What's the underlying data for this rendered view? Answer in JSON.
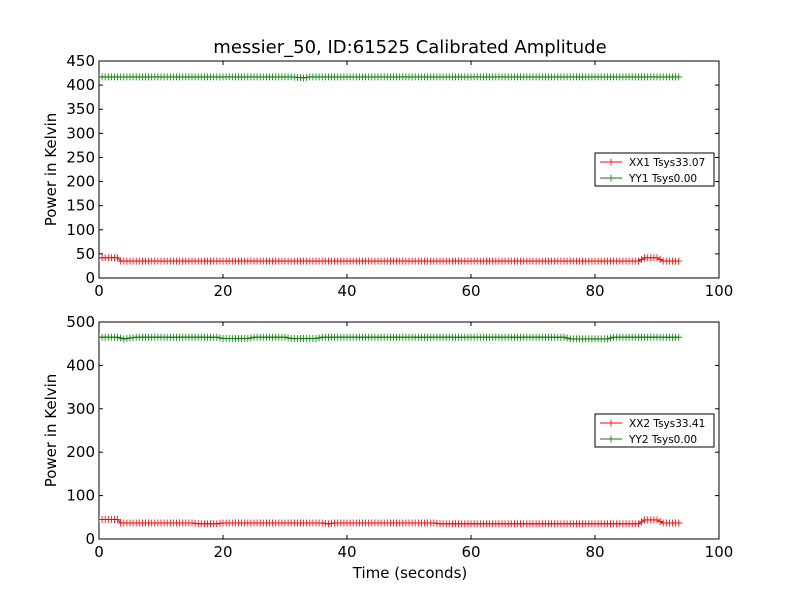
{
  "title": "messier_50, ID:61525 Calibrated Amplitude",
  "colors": {
    "xx": "#ff0000",
    "yy": "#008000",
    "axes": "#000000"
  },
  "xlabel": "Time (seconds)",
  "chart_data": [
    {
      "type": "line",
      "title": "messier_50, ID:61525 Calibrated Amplitude",
      "xlabel": "",
      "ylabel": "Power in Kelvin",
      "xlim": [
        0,
        100
      ],
      "ylim": [
        0,
        450
      ],
      "xticks": [
        "0",
        "20",
        "40",
        "60",
        "80",
        "100"
      ],
      "yticks": [
        "0",
        "50",
        "100",
        "150",
        "200",
        "250",
        "300",
        "350",
        "400",
        "450"
      ],
      "legend_position": "center-right",
      "x_start": 0,
      "x_step": 0.5,
      "series": [
        {
          "name": "XX1 Tsys33.07",
          "color": "#ff0000",
          "marker": "+",
          "segments": [
            [
              0,
              42
            ],
            [
              3,
              42
            ],
            [
              3.5,
              35
            ],
            [
              87,
              35
            ],
            [
              88,
              42
            ],
            [
              90,
              42
            ],
            [
              91,
              35
            ],
            [
              93.5,
              35
            ]
          ]
        },
        {
          "name": "YY1 Tsys0.00",
          "color": "#008000",
          "marker": "+",
          "segments": [
            [
              0,
              417
            ],
            [
              31,
              417
            ],
            [
              33,
              415
            ],
            [
              34,
              417
            ],
            [
              93.5,
              417
            ]
          ]
        }
      ]
    },
    {
      "type": "line",
      "title": "",
      "xlabel": "Time (seconds)",
      "ylabel": "Power in Kelvin",
      "xlim": [
        0,
        100
      ],
      "ylim": [
        0,
        500
      ],
      "xticks": [
        "0",
        "20",
        "40",
        "60",
        "80",
        "100"
      ],
      "yticks": [
        "0",
        "100",
        "200",
        "300",
        "400",
        "500"
      ],
      "legend_position": "center-right",
      "x_start": 0,
      "x_step": 0.5,
      "series": [
        {
          "name": "XX2 Tsys33.41",
          "color": "#ff0000",
          "marker": "+",
          "segments": [
            [
              0,
              45
            ],
            [
              3,
              45
            ],
            [
              3.5,
              37
            ],
            [
              15,
              37
            ],
            [
              16,
              35
            ],
            [
              19,
              35
            ],
            [
              20,
              37
            ],
            [
              36,
              37
            ],
            [
              37,
              35
            ],
            [
              38,
              37
            ],
            [
              54,
              37
            ],
            [
              55,
              35
            ],
            [
              87,
              35
            ],
            [
              88,
              44
            ],
            [
              90,
              44
            ],
            [
              91,
              37
            ],
            [
              93.5,
              37
            ]
          ]
        },
        {
          "name": "YY2 Tsys0.00",
          "color": "#008000",
          "marker": "+",
          "segments": [
            [
              0,
              465
            ],
            [
              3,
              465
            ],
            [
              4,
              461
            ],
            [
              6,
              465
            ],
            [
              19,
              465
            ],
            [
              20,
              462
            ],
            [
              24,
              462
            ],
            [
              25,
              465
            ],
            [
              30,
              465
            ],
            [
              31,
              462
            ],
            [
              35,
              462
            ],
            [
              36,
              465
            ],
            [
              75,
              465
            ],
            [
              76,
              461
            ],
            [
              82,
              461
            ],
            [
              83,
              465
            ],
            [
              93.5,
              465
            ]
          ]
        }
      ]
    }
  ]
}
